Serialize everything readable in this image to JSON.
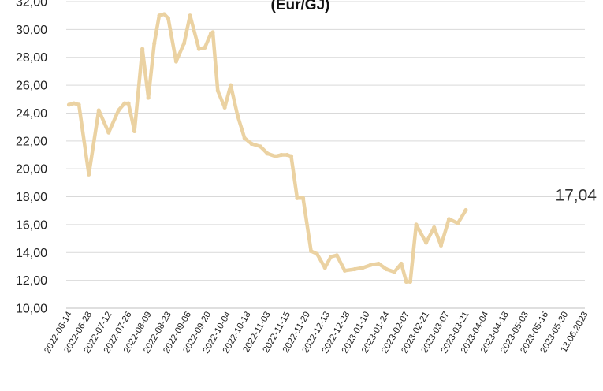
{
  "chart_data": {
    "type": "line",
    "title": "(Eur/GJ)",
    "xlabel": "",
    "ylabel": "",
    "ylim": [
      10,
      32
    ],
    "ytick_labels": [
      "10,00",
      "12,00",
      "14,00",
      "16,00",
      "18,00",
      "20,00",
      "22,00",
      "24,00",
      "26,00",
      "28,00",
      "30,00",
      "32,00"
    ],
    "x_tick_labels": [
      "2022-06-14",
      "2022-06-28",
      "2022-07-12",
      "2022-07-26",
      "2022-08-09",
      "2022-08-23",
      "2022-09-06",
      "2022-09-20",
      "2022-10-04",
      "2022-10-18",
      "2022-11-03",
      "2022-11-15",
      "2022-11-29",
      "2022-12-13",
      "2022-12-28",
      "2023-01-10",
      "2023-01-24",
      "2023-02-07",
      "2023-02-21",
      "2023-03-07",
      "2023-03-21",
      "2023-04-04",
      "2023-04-18",
      "2023-05-03",
      "2023-05-16",
      "2023-05-30",
      "13.06.2023"
    ],
    "grid": true,
    "line_color": "#ebd2a2",
    "end_label": "17,04",
    "series": [
      {
        "points": [
          [
            0.0,
            24.6
          ],
          [
            0.25,
            24.7
          ],
          [
            0.5,
            24.6
          ],
          [
            1.0,
            19.6
          ],
          [
            1.5,
            24.2
          ],
          [
            2.0,
            22.6
          ],
          [
            2.5,
            24.2
          ],
          [
            2.8,
            24.7
          ],
          [
            3.0,
            24.7
          ],
          [
            3.3,
            22.7
          ],
          [
            3.7,
            28.6
          ],
          [
            4.0,
            25.1
          ],
          [
            4.3,
            29.0
          ],
          [
            4.55,
            31.0
          ],
          [
            4.8,
            31.1
          ],
          [
            5.0,
            30.8
          ],
          [
            5.4,
            27.7
          ],
          [
            5.8,
            29.0
          ],
          [
            6.1,
            31.0
          ],
          [
            6.55,
            28.6
          ],
          [
            6.85,
            28.7
          ],
          [
            7.15,
            29.7
          ],
          [
            7.25,
            29.8
          ],
          [
            7.5,
            25.6
          ],
          [
            7.85,
            24.4
          ],
          [
            8.15,
            26.0
          ],
          [
            8.5,
            23.8
          ],
          [
            8.85,
            22.2
          ],
          [
            9.2,
            21.8
          ],
          [
            9.65,
            21.6
          ],
          [
            10.0,
            21.1
          ],
          [
            10.4,
            20.9
          ],
          [
            10.7,
            21.0
          ],
          [
            11.0,
            21.0
          ],
          [
            11.2,
            20.9
          ],
          [
            11.5,
            17.9
          ],
          [
            11.8,
            17.9
          ],
          [
            12.2,
            14.1
          ],
          [
            12.5,
            13.9
          ],
          [
            12.9,
            12.9
          ],
          [
            13.2,
            13.7
          ],
          [
            13.5,
            13.8
          ],
          [
            13.9,
            12.7
          ],
          [
            14.4,
            12.8
          ],
          [
            14.8,
            12.9
          ],
          [
            15.2,
            13.1
          ],
          [
            15.6,
            13.2
          ],
          [
            16.0,
            12.8
          ],
          [
            16.4,
            12.6
          ],
          [
            16.75,
            13.2
          ],
          [
            17.0,
            11.9
          ],
          [
            17.2,
            11.9
          ],
          [
            17.5,
            16.0
          ],
          [
            18.0,
            14.7
          ],
          [
            18.4,
            15.8
          ],
          [
            18.75,
            14.5
          ],
          [
            19.15,
            16.4
          ],
          [
            19.6,
            16.1
          ],
          [
            20.0,
            17.04
          ]
        ]
      }
    ]
  }
}
